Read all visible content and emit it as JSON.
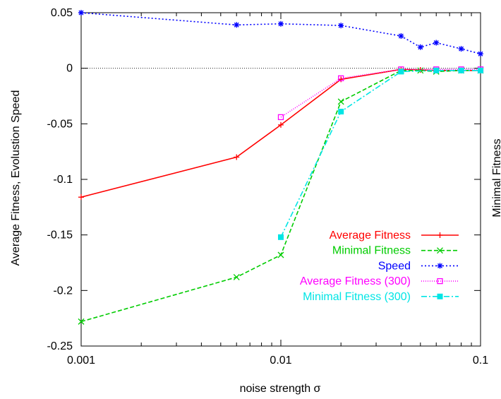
{
  "chart_data": {
    "type": "line",
    "xlabel": "noise strength σ",
    "ylabel": "Average Fitness, Evolustion Speed",
    "y2label": "Minimal Fitness",
    "xscale": "log",
    "xlim": [
      0.001,
      0.1
    ],
    "ylim": [
      -0.25,
      0.05
    ],
    "x_ticks": [
      {
        "value": 0.001,
        "label": "0.001"
      },
      {
        "value": 0.01,
        "label": "0.01"
      },
      {
        "value": 0.1,
        "label": "0.1"
      }
    ],
    "y_ticks": [
      {
        "value": 0.05,
        "label": "0.05"
      },
      {
        "value": 0,
        "label": "0"
      },
      {
        "value": -0.05,
        "label": "-0.05"
      },
      {
        "value": -0.1,
        "label": "-0.1"
      },
      {
        "value": -0.15,
        "label": "-0.15"
      },
      {
        "value": -0.2,
        "label": "-0.2"
      },
      {
        "value": -0.25,
        "label": "-0.25"
      }
    ],
    "zero_line": true,
    "grid": false,
    "legend_position": "bottom-right",
    "series": [
      {
        "name": "Average Fitness",
        "color": "#ff0000",
        "dash": "none",
        "marker": "plus",
        "x": [
          0.001,
          0.006,
          0.01,
          0.02,
          0.04,
          0.05,
          0.06,
          0.08,
          0.1
        ],
        "y": [
          -0.116,
          -0.08,
          -0.051,
          -0.01,
          -0.001,
          -0.0015,
          -0.002,
          -0.002,
          -0.002
        ]
      },
      {
        "name": "Minimal Fitness",
        "color": "#00cc00",
        "dash": "6,3",
        "marker": "cross",
        "x": [
          0.001,
          0.006,
          0.01,
          0.02,
          0.04,
          0.05,
          0.06,
          0.08,
          0.1
        ],
        "y": [
          -0.228,
          -0.188,
          -0.168,
          -0.03,
          -0.002,
          -0.002,
          -0.003,
          -0.002,
          -0.002
        ]
      },
      {
        "name": "Speed",
        "color": "#0000ff",
        "dash": "2,3",
        "marker": "star",
        "x": [
          0.001,
          0.006,
          0.01,
          0.02,
          0.04,
          0.05,
          0.06,
          0.08,
          0.1
        ],
        "y": [
          0.05,
          0.039,
          0.04,
          0.0385,
          0.029,
          0.019,
          0.023,
          0.0175,
          0.013
        ]
      },
      {
        "name": "Average Fitness (300)",
        "color": "#ff00ff",
        "dash": "1,2",
        "marker": "square-open",
        "x": [
          0.01,
          0.02,
          0.04,
          0.06,
          0.08,
          0.1
        ],
        "y": [
          -0.044,
          -0.009,
          -0.001,
          -0.001,
          -0.001,
          -0.001
        ]
      },
      {
        "name": "Minimal Fitness (300)",
        "color": "#00e5e5",
        "dash": "8,3,2,3",
        "marker": "square-filled",
        "x": [
          0.01,
          0.02,
          0.04,
          0.06,
          0.08,
          0.1
        ],
        "y": [
          -0.152,
          -0.039,
          -0.003,
          -0.002,
          -0.002,
          -0.002
        ]
      }
    ]
  }
}
